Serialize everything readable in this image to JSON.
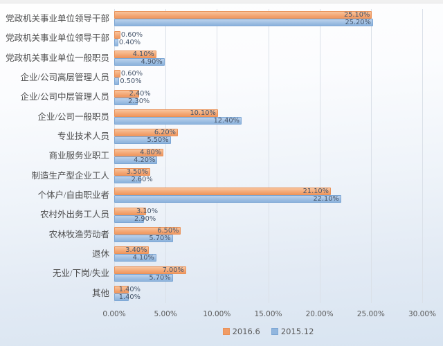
{
  "chart_data": {
    "type": "bar",
    "orientation": "horizontal",
    "title": "",
    "categories": [
      "党政机关事业单位领导干部",
      "党政机关事业单位领导干部",
      "党政机关事业单位一般职员",
      "企业/公司高层管理人员",
      "企业/公司中层管理人员",
      "企业/公司一般职员",
      "专业技术人员",
      "商业服务业职工",
      "制造生产型企业工人",
      "个体户/自由职业者",
      "农村外出务工人员",
      "农林牧渔劳动者",
      "退休",
      "无业/下岗/失业",
      "其他"
    ],
    "series": [
      {
        "name": "2016.6",
        "color_fill_light": "#f9c49c",
        "color_fill": "#f19c66",
        "color_border": "#e99157",
        "values": [
          25.1,
          0.6,
          4.1,
          0.6,
          2.4,
          10.1,
          6.2,
          4.8,
          3.5,
          21.1,
          3.1,
          6.5,
          3.4,
          7.0,
          1.4
        ]
      },
      {
        "name": "2015.12",
        "color_fill_light": "#bcd2ec",
        "color_fill": "#91b6de",
        "color_border": "#7ca6d4",
        "values": [
          25.2,
          0.4,
          4.9,
          0.5,
          2.3,
          12.4,
          5.5,
          4.2,
          2.6,
          22.1,
          2.9,
          5.7,
          4.1,
          5.7,
          1.4
        ]
      }
    ],
    "value_label_format": "0.00%",
    "x_axis": {
      "min": 0,
      "max": 30,
      "step": 5,
      "tick_labels": [
        "0.00%",
        "5.00%",
        "10.00%",
        "15.00%",
        "20.00%",
        "25.00%",
        "30.00%"
      ]
    },
    "legend_position": "bottom",
    "grid": true,
    "colors": {
      "gridline": "#dae0e8",
      "value_label_text": "#44546a",
      "axis_text": "#595959",
      "category_text": "#4d4d4d"
    }
  }
}
